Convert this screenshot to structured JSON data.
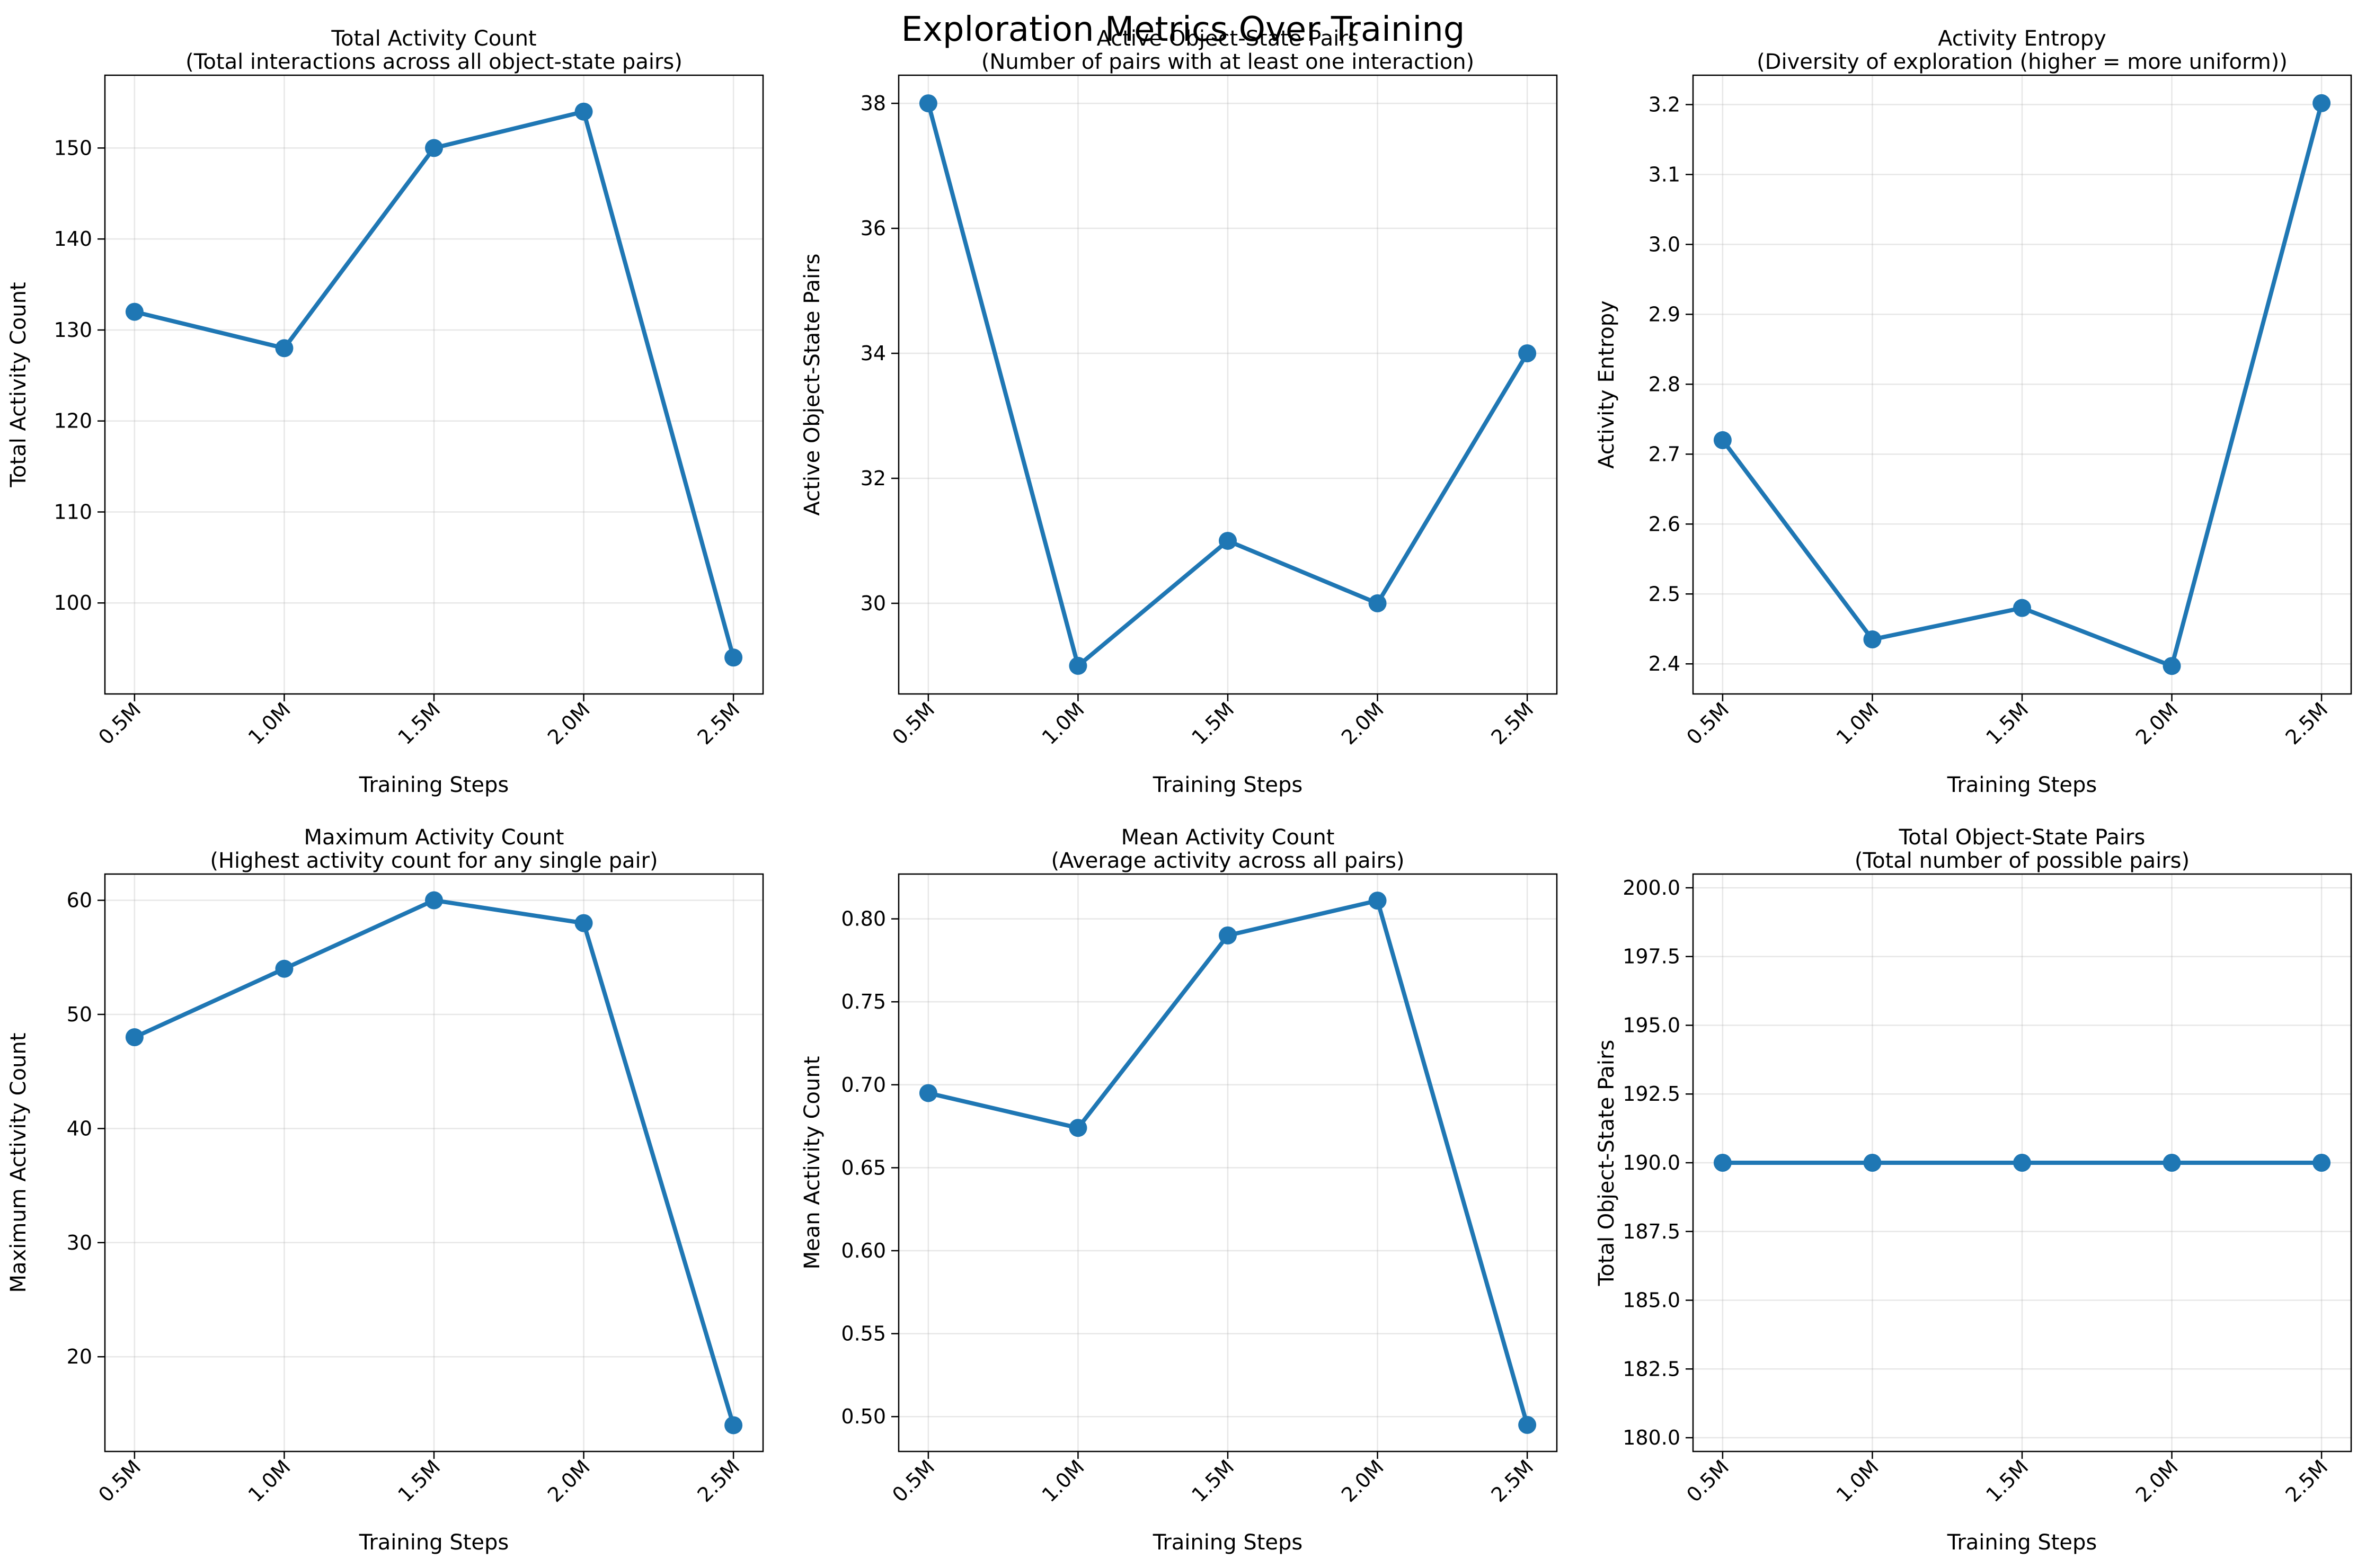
{
  "figure": {
    "title": "Exploration Metrics Over Training",
    "line_color": "#1f77b4",
    "grid": true
  },
  "chart_data": [
    {
      "type": "line",
      "title": "Total Activity Count",
      "subtitle": "(Total interactions across all object-state pairs)",
      "xlabel": "Training Steps",
      "ylabel": "Total Activity Count",
      "categories": [
        "0.5M",
        "1.0M",
        "1.5M",
        "2.0M",
        "2.5M"
      ],
      "values": [
        132,
        128,
        150,
        154,
        94
      ],
      "ylim": [
        90.0,
        158.0
      ],
      "yticks": [
        100,
        110,
        120,
        130,
        140,
        150
      ],
      "ytick_labels": [
        "100",
        "110",
        "120",
        "130",
        "140",
        "150"
      ]
    },
    {
      "type": "line",
      "title": "Active Object-State Pairs",
      "subtitle": "(Number of pairs with at least one interaction)",
      "xlabel": "Training Steps",
      "ylabel": "Active Object-State Pairs",
      "categories": [
        "0.5M",
        "1.0M",
        "1.5M",
        "2.0M",
        "2.5M"
      ],
      "values": [
        38,
        29,
        31,
        30,
        34
      ],
      "ylim": [
        28.55,
        38.45
      ],
      "yticks": [
        30,
        32,
        34,
        36,
        38
      ],
      "ytick_labels": [
        "30",
        "32",
        "34",
        "36",
        "38"
      ]
    },
    {
      "type": "line",
      "title": "Activity Entropy",
      "subtitle": "(Diversity of exploration (higher = more uniform))",
      "xlabel": "Training Steps",
      "ylabel": "Activity Entropy",
      "categories": [
        "0.5M",
        "1.0M",
        "1.5M",
        "2.0M",
        "2.5M"
      ],
      "values": [
        2.72,
        2.435,
        2.48,
        2.397,
        3.202
      ],
      "ylim": [
        2.357,
        3.242
      ],
      "yticks": [
        2.4,
        2.5,
        2.6,
        2.7,
        2.8,
        2.9,
        3.0,
        3.1,
        3.2
      ],
      "ytick_labels": [
        "2.4",
        "2.5",
        "2.6",
        "2.7",
        "2.8",
        "2.9",
        "3.0",
        "3.1",
        "3.2"
      ]
    },
    {
      "type": "line",
      "title": "Maximum Activity Count",
      "subtitle": "(Highest activity count for any single pair)",
      "xlabel": "Training Steps",
      "ylabel": "Maximum Activity Count",
      "categories": [
        "0.5M",
        "1.0M",
        "1.5M",
        "2.0M",
        "2.5M"
      ],
      "values": [
        48,
        54,
        60,
        58,
        14
      ],
      "ylim": [
        11.7,
        62.3
      ],
      "yticks": [
        20,
        30,
        40,
        50,
        60
      ],
      "ytick_labels": [
        "20",
        "30",
        "40",
        "50",
        "60"
      ]
    },
    {
      "type": "line",
      "title": "Mean Activity Count",
      "subtitle": "(Average activity across all pairs)",
      "xlabel": "Training Steps",
      "ylabel": "Mean Activity Count",
      "categories": [
        "0.5M",
        "1.0M",
        "1.5M",
        "2.0M",
        "2.5M"
      ],
      "values": [
        0.695,
        0.674,
        0.79,
        0.811,
        0.495
      ],
      "ylim": [
        0.479,
        0.827
      ],
      "yticks": [
        0.5,
        0.55,
        0.6,
        0.65,
        0.7,
        0.75,
        0.8
      ],
      "ytick_labels": [
        "0.50",
        "0.55",
        "0.60",
        "0.65",
        "0.70",
        "0.75",
        "0.80"
      ]
    },
    {
      "type": "line",
      "title": "Total Object-State Pairs",
      "subtitle": "(Total number of possible pairs)",
      "xlabel": "Training Steps",
      "ylabel": "Total Object-State Pairs",
      "categories": [
        "0.5M",
        "1.0M",
        "1.5M",
        "2.0M",
        "2.5M"
      ],
      "values": [
        190,
        190,
        190,
        190,
        190
      ],
      "ylim": [
        179.5,
        200.5
      ],
      "yticks": [
        180.0,
        182.5,
        185.0,
        187.5,
        190.0,
        192.5,
        195.0,
        197.5,
        200.0
      ],
      "ytick_labels": [
        "180.0",
        "182.5",
        "185.0",
        "187.5",
        "190.0",
        "192.5",
        "195.0",
        "197.5",
        "200.0"
      ]
    }
  ]
}
